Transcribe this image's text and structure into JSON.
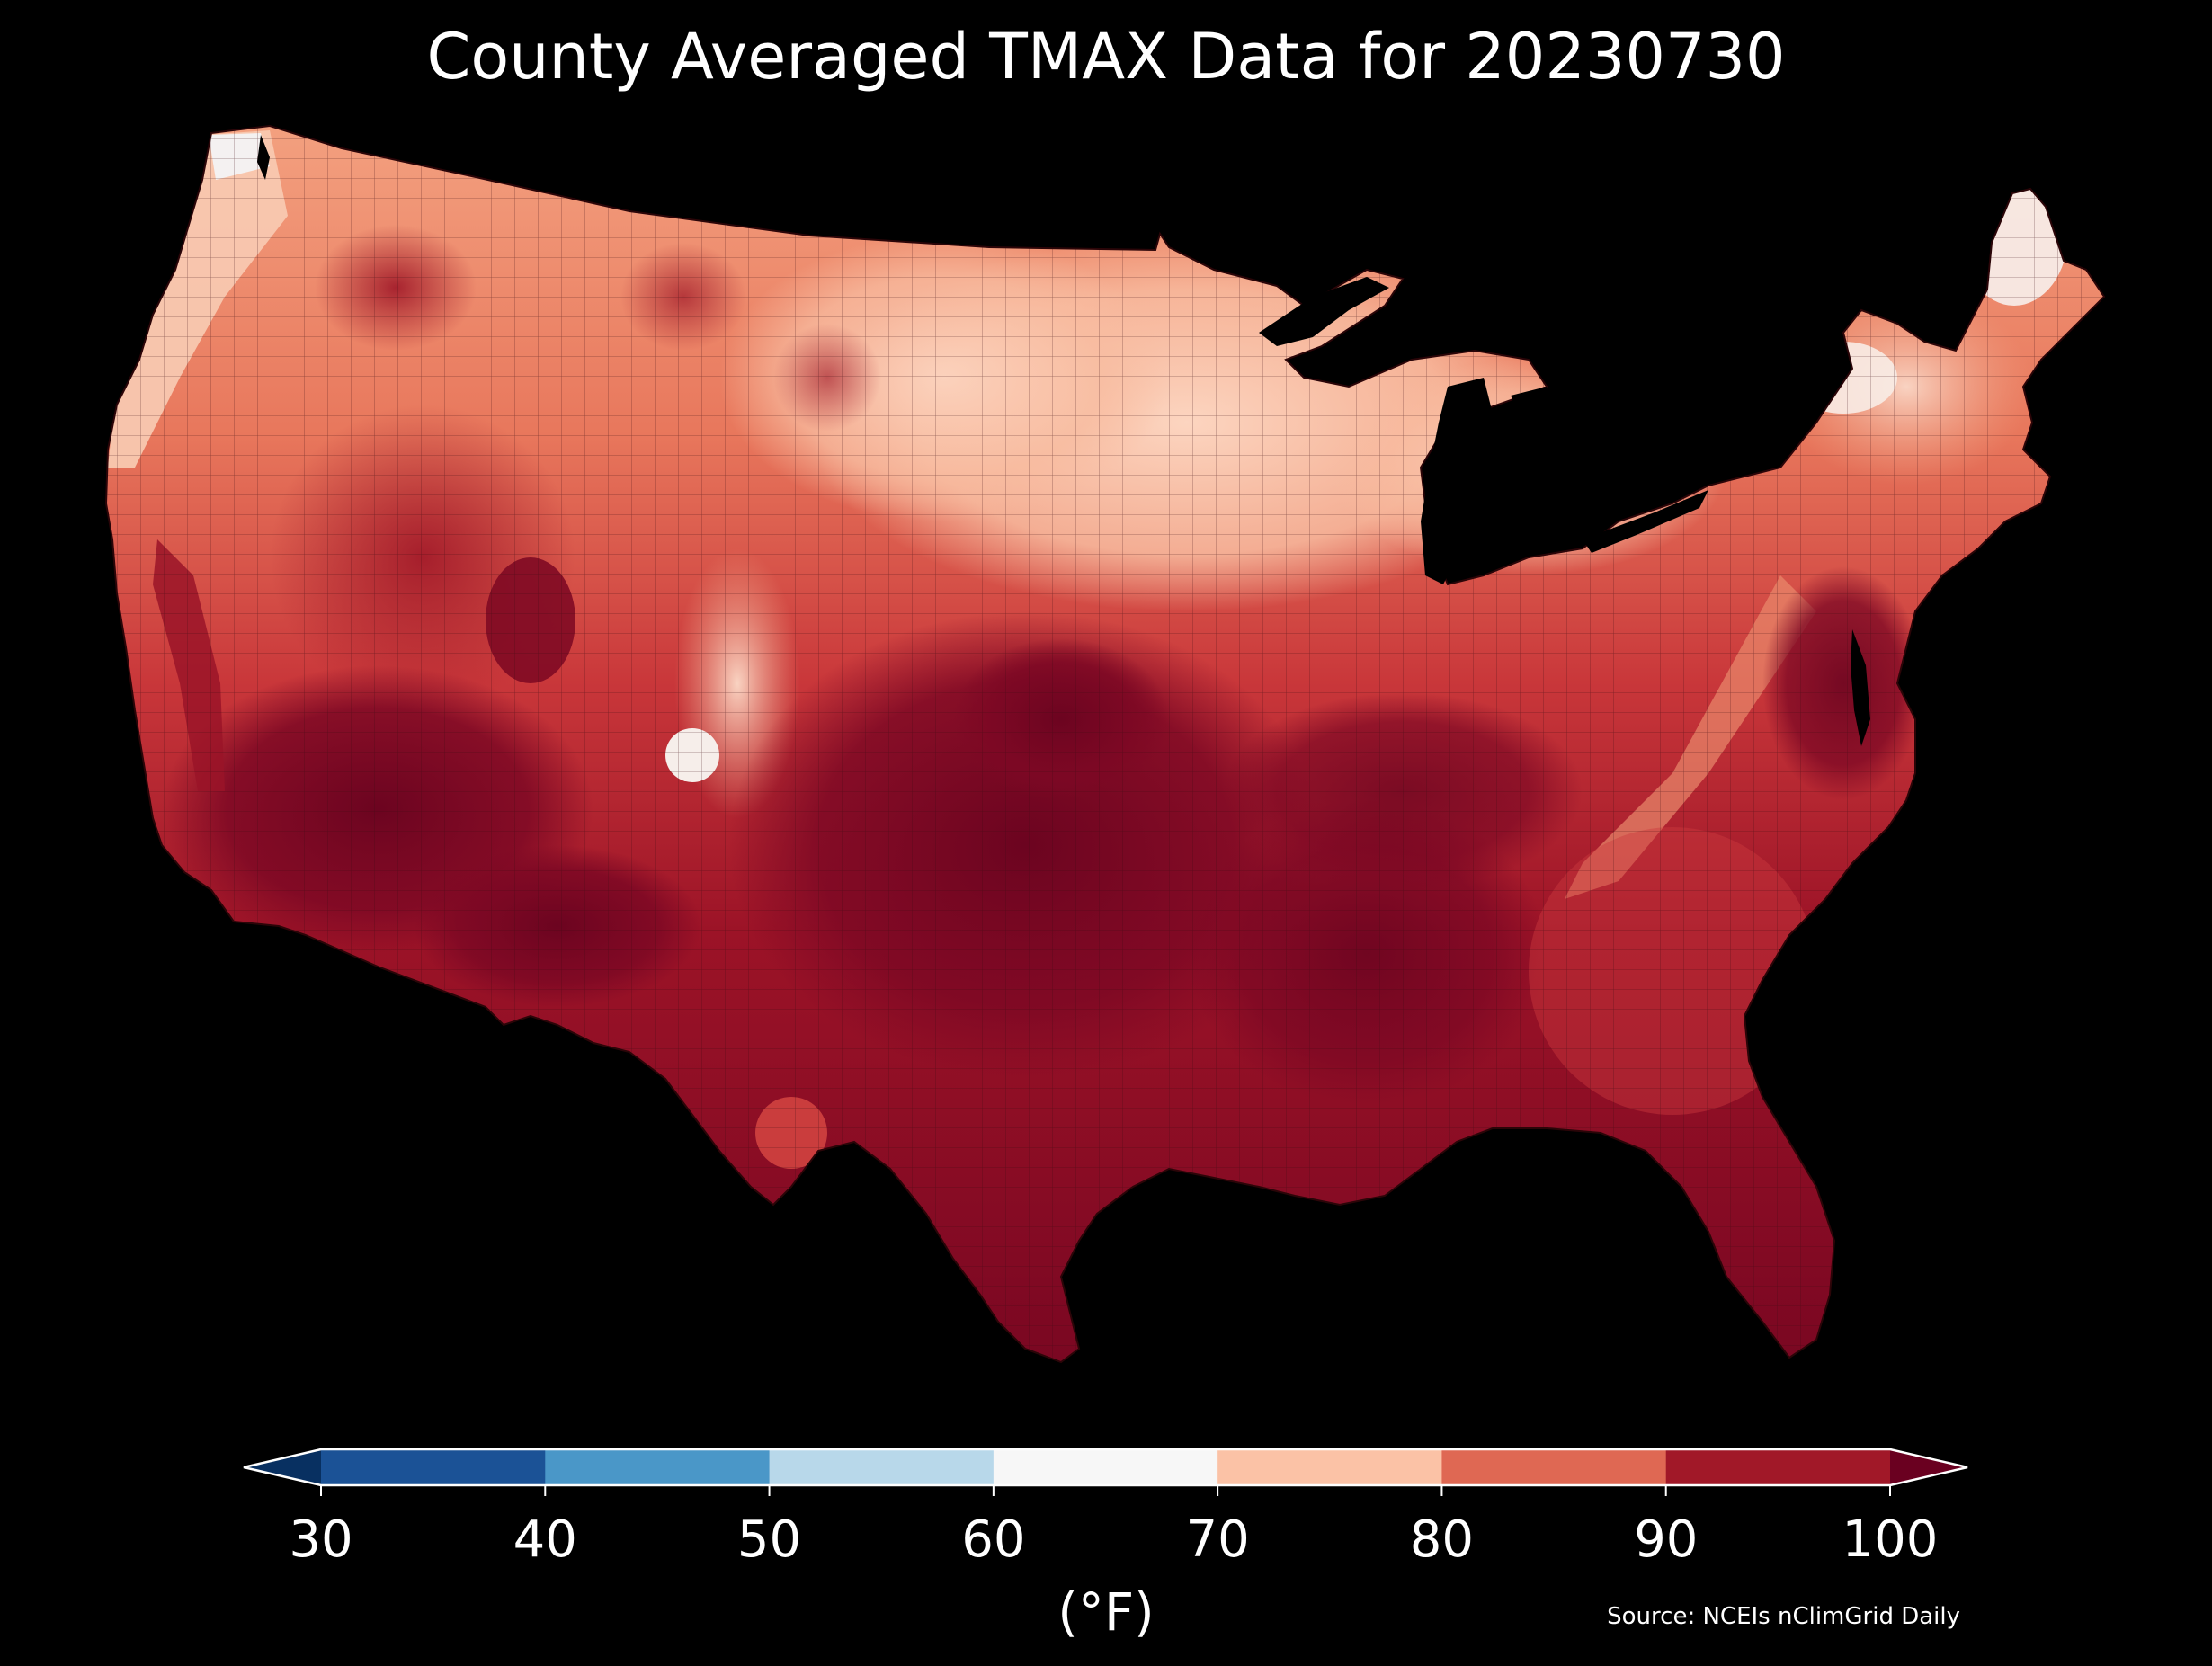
{
  "title": "County Averaged TMAX Data for 20230730",
  "colorbar": {
    "ticks": [
      "30",
      "40",
      "50",
      "60",
      "70",
      "80",
      "90",
      "100"
    ],
    "unit_label": "(°F)",
    "bins": [
      {
        "range": [
          30,
          40
        ],
        "color": "#1b5296"
      },
      {
        "range": [
          40,
          50
        ],
        "color": "#4a97c8"
      },
      {
        "range": [
          50,
          60
        ],
        "color": "#b8d8ea"
      },
      {
        "range": [
          60,
          70
        ],
        "color": "#f7f7f7"
      },
      {
        "range": [
          70,
          80
        ],
        "color": "#fbc2a6"
      },
      {
        "range": [
          80,
          90
        ],
        "color": "#df6853"
      },
      {
        "range": [
          90,
          100
        ],
        "color": "#a11828"
      }
    ],
    "under_color": "#083061",
    "over_color": "#6a0020"
  },
  "source": "Source: NCEIs nClimGrid Daily",
  "colors": {
    "background": "#000000",
    "text": "#ffffff"
  }
}
